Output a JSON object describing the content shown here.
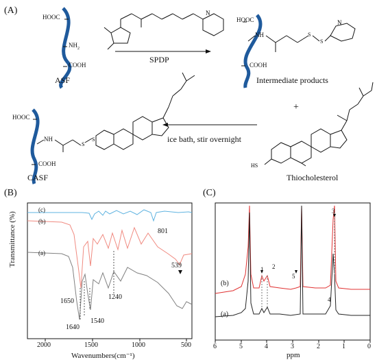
{
  "panelA": {
    "letter": "(A)",
    "asf_label": "ASF",
    "asf_groups": {
      "top": "HOOC",
      "mid": "NH",
      "mid_sub": "2",
      "bottom": "COOH"
    },
    "reagent": "SPDP",
    "intermediate_label": "Intermediate products",
    "intermediate_groups": {
      "top": "HOOC",
      "mid": "NH",
      "bottom": "COOH",
      "nitrogen": "N",
      "sulfur": "S"
    },
    "plus": "+",
    "condition": "ice bath, stir overnight",
    "casf_label": "CASF",
    "casf_groups": {
      "top": "HOOC",
      "mid": "NH",
      "bottom": "COOH",
      "sulfur": "S"
    },
    "thiochol_label": "Thiocholesterol",
    "thiochol_hs": "HS",
    "h_atom": "H"
  },
  "panelB": {
    "letter": "(B)",
    "ylabel": "Transmittance (%)",
    "xlabel": "Wavenumbers(cm⁻¹)",
    "xticks": [
      "2000",
      "1500",
      "1000",
      "500"
    ],
    "xlim": [
      2150,
      400
    ],
    "curve_labels": [
      "(c)",
      "(b)",
      "(a)"
    ],
    "annotations": [
      "801",
      "539",
      "1650",
      "1640",
      "1540",
      "1240"
    ],
    "colors": {
      "c": "#5fb3e0",
      "b": "#f08a80",
      "a": "#808080"
    }
  },
  "panelC": {
    "letter": "(C)",
    "xlabel": "ppm",
    "xticks": [
      "6",
      "5",
      "4",
      "3",
      "2",
      "1",
      "0"
    ],
    "xlim": [
      6,
      0
    ],
    "curve_labels": [
      "(b)",
      "(a)"
    ],
    "peak_labels": [
      "1",
      "2",
      "3",
      "4",
      "5"
    ],
    "colors": {
      "b": "#e03030",
      "a": "#222222"
    }
  }
}
